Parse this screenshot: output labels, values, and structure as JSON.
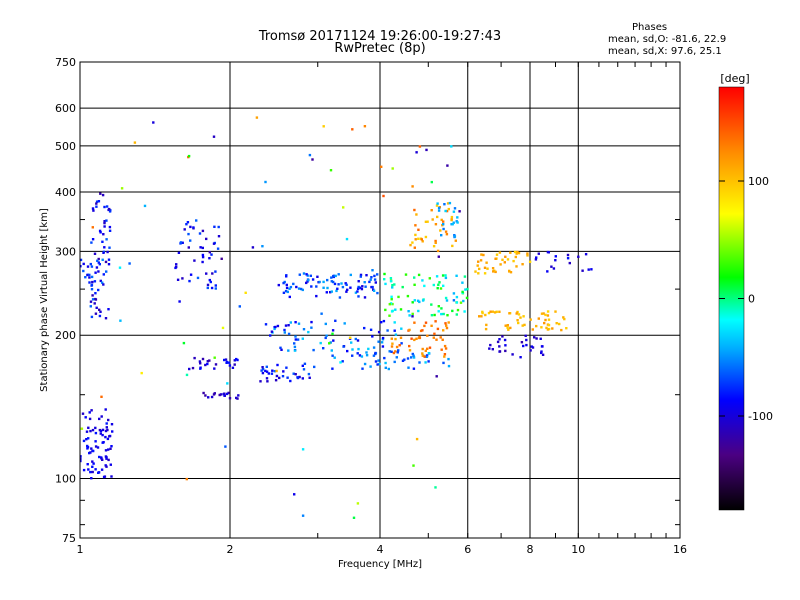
{
  "chart_data": {
    "type": "scatter",
    "title": "Tromsø 20171124 19:26:00-19:27:43",
    "subtitle": "RwPretec (8p)",
    "xlabel": "Frequency [MHz]",
    "ylabel": "Stationary phase Virtual Height [km]",
    "x_scale": "log",
    "y_scale": "log",
    "xlim": [
      1,
      16
    ],
    "ylim": [
      75,
      750
    ],
    "x_ticks": [
      "1",
      "2",
      "4",
      "6",
      "8",
      "10",
      "16"
    ],
    "y_ticks": [
      "75",
      "100",
      "200",
      "300",
      "400",
      "500",
      "600",
      "750"
    ],
    "grid": true,
    "phase_stats": {
      "heading": "Phases",
      "line_o": "mean, sd,O: -81.6, 22.9",
      "line_x": "mean, sd,X:  97.6, 25.1"
    },
    "colorbar": {
      "label": "[deg]",
      "range": [
        -180,
        180
      ],
      "tick_labels": [
        "100",
        "0",
        "-100"
      ],
      "tick_values": [
        100,
        0,
        -100
      ]
    },
    "clusters": [
      {
        "f": [
          1.0,
          1.16
        ],
        "h": [
          100,
          140
        ],
        "phase": [
          -110,
          -80
        ],
        "n": 80
      },
      {
        "f": [
          1.05,
          1.15
        ],
        "h": [
          215,
          420
        ],
        "phase": [
          -120,
          -60
        ],
        "n": 60
      },
      {
        "f": [
          1.0,
          1.12
        ],
        "h": [
          250,
          290
        ],
        "phase": [
          -100,
          -50
        ],
        "n": 25
      },
      {
        "f": [
          1.55,
          1.9
        ],
        "h": [
          250,
          350
        ],
        "phase": [
          -120,
          -60
        ],
        "n": 50
      },
      {
        "f": [
          1.65,
          2.1
        ],
        "h": [
          170,
          180
        ],
        "phase": [
          -120,
          -80
        ],
        "n": 25
      },
      {
        "f": [
          1.75,
          2.1
        ],
        "h": [
          147,
          152
        ],
        "phase": [
          -120,
          -90
        ],
        "n": 18
      },
      {
        "f": [
          2.3,
          3.0
        ],
        "h": [
          160,
          175
        ],
        "phase": [
          -110,
          -60
        ],
        "n": 35
      },
      {
        "f": [
          2.5,
          4.0
        ],
        "h": [
          240,
          270
        ],
        "phase": [
          -100,
          -40
        ],
        "n": 90
      },
      {
        "f": [
          2.4,
          4.5
        ],
        "h": [
          185,
          215
        ],
        "phase": [
          -100,
          -30
        ],
        "n": 70
      },
      {
        "f": [
          3.2,
          5.5
        ],
        "h": [
          170,
          185
        ],
        "phase": [
          -90,
          -30
        ],
        "n": 50
      },
      {
        "f": [
          4.0,
          6.0
        ],
        "h": [
          220,
          270
        ],
        "phase": [
          -40,
          40
        ],
        "n": 80
      },
      {
        "f": [
          4.2,
          5.6
        ],
        "h": [
          180,
          215
        ],
        "phase": [
          110,
          150
        ],
        "n": 50
      },
      {
        "f": [
          4.6,
          5.7
        ],
        "h": [
          300,
          380
        ],
        "phase": [
          90,
          140
        ],
        "n": 40
      },
      {
        "f": [
          5.2,
          5.8
        ],
        "h": [
          320,
          380
        ],
        "phase": [
          -60,
          -30
        ],
        "n": 20
      },
      {
        "f": [
          6.2,
          8.0
        ],
        "h": [
          270,
          300
        ],
        "phase": [
          90,
          120
        ],
        "n": 40
      },
      {
        "f": [
          6.3,
          9.5
        ],
        "h": [
          205,
          225
        ],
        "phase": [
          90,
          120
        ],
        "n": 55
      },
      {
        "f": [
          6.5,
          8.5
        ],
        "h": [
          180,
          200
        ],
        "phase": [
          -120,
          -90
        ],
        "n": 30
      },
      {
        "f": [
          8.0,
          10.8
        ],
        "h": [
          270,
          300
        ],
        "phase": [
          -110,
          -80
        ],
        "n": 18
      },
      {
        "f": [
          1.0,
          6.0
        ],
        "h": [
          80,
          600
        ],
        "phase": [
          -130,
          150
        ],
        "n": 70
      }
    ]
  }
}
